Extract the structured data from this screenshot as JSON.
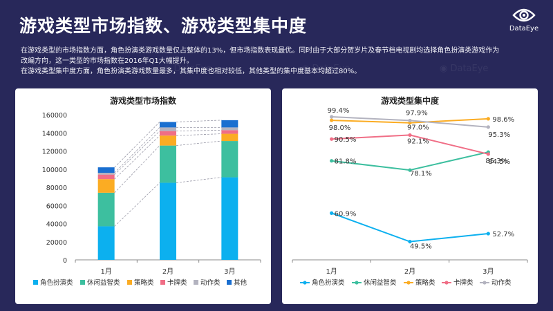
{
  "title": "游戏类型市场指数、游戏类型集中度",
  "logo": {
    "icon": "eye-logo-icon",
    "text": "DataEye"
  },
  "description": [
    "在游戏类型的市场指数方面，角色扮演类游戏数量仅占整体的13%，但市场指数表现最优。同时由于大部分贺岁片及春节档电视剧均选择角色扮演类游戏作为改编方向，这一类型的市场指数在2016年Q1大幅提升。",
    "在游戏类型集中度方面，角色扮演类游戏数量最多，其集中度也相对较低，其他类型的集中度基本均超过80%。"
  ],
  "watermark": "DataEye",
  "chart_data": [
    {
      "type": "bar",
      "stacked": true,
      "title": "游戏类型市场指数",
      "categories": [
        "1月",
        "2月",
        "3月"
      ],
      "ylim": [
        0,
        160000
      ],
      "yticks": [
        "0",
        "20000",
        "40000",
        "60000",
        "80000",
        "100000",
        "120000",
        "140000",
        "160000"
      ],
      "series": [
        {
          "name": "角色扮演类",
          "color": "#0cb0ef",
          "values": [
            37000,
            85000,
            91000
          ]
        },
        {
          "name": "休闲益智类",
          "color": "#3dbf9f",
          "values": [
            37000,
            41000,
            40000
          ]
        },
        {
          "name": "策略类",
          "color": "#fbac23",
          "values": [
            15000,
            11000,
            8000
          ]
        },
        {
          "name": "卡牌类",
          "color": "#f06e86",
          "values": [
            5000,
            5000,
            4000
          ]
        },
        {
          "name": "动作类",
          "color": "#b3b3bf",
          "values": [
            2000,
            4000,
            3000
          ]
        },
        {
          "name": "其他",
          "color": "#1a6fd0",
          "values": [
            6000,
            6000,
            8000
          ]
        }
      ],
      "legend": "bottom",
      "connector_lines": true
    },
    {
      "type": "line",
      "title": "游戏类型集中度",
      "categories": [
        "1月",
        "2月",
        "3月"
      ],
      "ylim": [
        40,
        100
      ],
      "series": [
        {
          "name": "角色扮演类",
          "color": "#0cb0ef",
          "values": [
            60.9,
            49.5,
            52.7
          ],
          "labels": [
            "60.9%",
            "49.5%",
            "52.7%"
          ]
        },
        {
          "name": "休闲益智类",
          "color": "#3dbf9f",
          "values": [
            81.8,
            78.1,
            85.3
          ],
          "labels": [
            "81.8%",
            "78.1%",
            "85.3%"
          ]
        },
        {
          "name": "策略类",
          "color": "#fbac23",
          "values": [
            98.0,
            97.0,
            98.6
          ],
          "labels": [
            "98.0%",
            "97.0%",
            "98.6%"
          ]
        },
        {
          "name": "卡牌类",
          "color": "#f06e86",
          "values": [
            90.5,
            92.1,
            84.5
          ],
          "labels": [
            "90.5%",
            "92.1%",
            "84.5%"
          ]
        },
        {
          "name": "动作类",
          "color": "#b3b3bf",
          "values": [
            99.4,
            97.9,
            95.3
          ],
          "labels": [
            "99.4%",
            "97.9%",
            "95.3%"
          ]
        }
      ],
      "legend": "bottom"
    }
  ]
}
